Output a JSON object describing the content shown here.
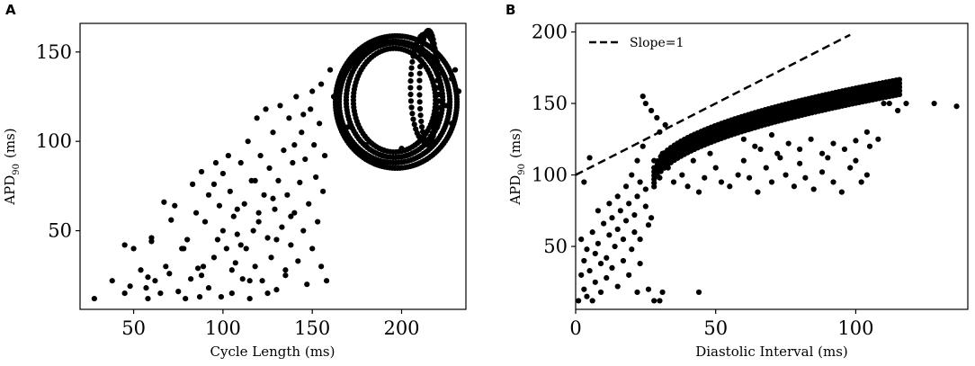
{
  "chart_data": [
    {
      "panel": "A",
      "type": "scatter",
      "xlabel": "Cycle Length (ms)",
      "ylabel_main": "APD",
      "ylabel_sub": "90",
      "ylabel_unit": "(ms)",
      "xlim": [
        20,
        236
      ],
      "ylim": [
        6,
        166
      ],
      "xticks": [
        50,
        100,
        150,
        200
      ],
      "yticks": [
        50,
        100,
        150
      ],
      "grid": false,
      "marker_color": "#000000",
      "points": [
        [
          28,
          12
        ],
        [
          38,
          22
        ],
        [
          45,
          42
        ],
        [
          45,
          15
        ],
        [
          48,
          19
        ],
        [
          50,
          40
        ],
        [
          54,
          28
        ],
        [
          57,
          18
        ],
        [
          58,
          12
        ],
        [
          60,
          46
        ],
        [
          60,
          44
        ],
        [
          62,
          22
        ],
        [
          65,
          15
        ],
        [
          67,
          66
        ],
        [
          70,
          26
        ],
        [
          71,
          56
        ],
        [
          73,
          64
        ],
        [
          75,
          16
        ],
        [
          77,
          40
        ],
        [
          79,
          12
        ],
        [
          80,
          45
        ],
        [
          82,
          23
        ],
        [
          83,
          76
        ],
        [
          85,
          60
        ],
        [
          86,
          29
        ],
        [
          87,
          13
        ],
        [
          88,
          83
        ],
        [
          89,
          30
        ],
        [
          90,
          55
        ],
        [
          92,
          18
        ],
        [
          92,
          70
        ],
        [
          95,
          76
        ],
        [
          96,
          88
        ],
        [
          97,
          45
        ],
        [
          98,
          64
        ],
        [
          99,
          13
        ],
        [
          100,
          82
        ],
        [
          102,
          40
        ],
        [
          103,
          92
        ],
        [
          104,
          72
        ],
        [
          105,
          15
        ],
        [
          106,
          58
        ],
        [
          107,
          32
        ],
        [
          108,
          48
        ],
        [
          110,
          88
        ],
        [
          111,
          23
        ],
        [
          112,
          65
        ],
        [
          113,
          40
        ],
        [
          114,
          100
        ],
        [
          115,
          12
        ],
        [
          116,
          78
        ],
        [
          117,
          50
        ],
        [
          118,
          30
        ],
        [
          119,
          113
        ],
        [
          120,
          60
        ],
        [
          121,
          92
        ],
        [
          122,
          22
        ],
        [
          123,
          70
        ],
        [
          124,
          118
        ],
        [
          125,
          46
        ],
        [
          126,
          85
        ],
        [
          127,
          35
        ],
        [
          128,
          105
        ],
        [
          129,
          62
        ],
        [
          130,
          17
        ],
        [
          131,
          78
        ],
        [
          132,
          120
        ],
        [
          133,
          52
        ],
        [
          134,
          95
        ],
        [
          135,
          28
        ],
        [
          136,
          70
        ],
        [
          137,
          113
        ],
        [
          138,
          42
        ],
        [
          139,
          88
        ],
        [
          140,
          60
        ],
        [
          141,
          125
        ],
        [
          142,
          33
        ],
        [
          143,
          77
        ],
        [
          144,
          105
        ],
        [
          145,
          50
        ],
        [
          146,
          90
        ],
        [
          147,
          20
        ],
        [
          148,
          65
        ],
        [
          149,
          118
        ],
        [
          150,
          40
        ],
        [
          151,
          98
        ],
        [
          152,
          80
        ],
        [
          153,
          55
        ],
        [
          154,
          110
        ],
        [
          155,
          30
        ],
        [
          156,
          72
        ],
        [
          157,
          92
        ],
        [
          158,
          22
        ],
        [
          110,
          42
        ],
        [
          120,
          55
        ],
        [
          130,
          45
        ],
        [
          140,
          98
        ],
        [
          145,
          115
        ],
        [
          150,
          128
        ],
        [
          155,
          132
        ],
        [
          160,
          140
        ],
        [
          162,
          125
        ],
        [
          165,
          118
        ],
        [
          95,
          35
        ],
        [
          105,
          28
        ],
        [
          115,
          22
        ],
        [
          125,
          15
        ],
        [
          135,
          25
        ],
        [
          100,
          50
        ],
        [
          108,
          62
        ],
        [
          118,
          78
        ],
        [
          128,
          68
        ],
        [
          138,
          58
        ],
        [
          88,
          25
        ],
        [
          78,
          40
        ],
        [
          68,
          30
        ],
        [
          58,
          24
        ],
        [
          170,
          108
        ],
        [
          172,
          100
        ],
        [
          175,
          96
        ],
        [
          180,
          98
        ],
        [
          190,
          95
        ],
        [
          200,
          96
        ],
        [
          210,
          100
        ],
        [
          220,
          108
        ],
        [
          225,
          120
        ],
        [
          228,
          135
        ],
        [
          230,
          140
        ],
        [
          232,
          128
        ],
        [
          228,
          110
        ]
      ],
      "rings": [
        {
          "cx": 196,
          "cy": 123,
          "rx": 23,
          "ry": 29,
          "n": 90
        },
        {
          "cx": 196,
          "cy": 123,
          "rx": 27,
          "ry": 32,
          "n": 110
        },
        {
          "cx": 196,
          "cy": 122,
          "rx": 31,
          "ry": 34,
          "n": 130
        },
        {
          "cx": 197,
          "cy": 122,
          "rx": 34,
          "ry": 37,
          "n": 150
        },
        {
          "cx": 213,
          "cy": 130,
          "rx": 8,
          "ry": 30,
          "n": 50
        },
        {
          "cx": 215,
          "cy": 130,
          "rx": 5,
          "ry": 32,
          "n": 50
        }
      ]
    },
    {
      "panel": "B",
      "type": "scatter",
      "xlabel": "Diastolic Interval (ms)",
      "ylabel_main": "APD",
      "ylabel_sub": "90",
      "ylabel_unit": "(ms)",
      "xlim": [
        0,
        140
      ],
      "ylim": [
        6,
        206
      ],
      "xticks": [
        0,
        50,
        100
      ],
      "yticks": [
        50,
        100,
        150,
        200
      ],
      "grid": false,
      "legend": {
        "label": "Slope=1",
        "position": "top-left"
      },
      "reference_line": {
        "x": [
          0,
          98
        ],
        "y": [
          100,
          198
        ],
        "style": "dashed"
      },
      "marker_color": "#000000",
      "points": [
        [
          1,
          12
        ],
        [
          2,
          30
        ],
        [
          2,
          55
        ],
        [
          3,
          20
        ],
        [
          3,
          40
        ],
        [
          4,
          15
        ],
        [
          4,
          48
        ],
        [
          5,
          33
        ],
        [
          6,
          60
        ],
        [
          6,
          12
        ],
        [
          7,
          45
        ],
        [
          7,
          25
        ],
        [
          8,
          52
        ],
        [
          9,
          38
        ],
        [
          9,
          18
        ],
        [
          10,
          66
        ],
        [
          11,
          42
        ],
        [
          11,
          28
        ],
        [
          12,
          58
        ],
        [
          13,
          35
        ],
        [
          13,
          70
        ],
        [
          14,
          50
        ],
        [
          15,
          22
        ],
        [
          15,
          62
        ],
        [
          16,
          75
        ],
        [
          17,
          40
        ],
        [
          17,
          55
        ],
        [
          18,
          68
        ],
        [
          19,
          30
        ],
        [
          19,
          80
        ],
        [
          20,
          48
        ],
        [
          21,
          60
        ],
        [
          21,
          72
        ],
        [
          22,
          85
        ],
        [
          22,
          18
        ],
        [
          23,
          38
        ],
        [
          23,
          55
        ],
        [
          24,
          155
        ],
        [
          25,
          90
        ],
        [
          25,
          150
        ],
        [
          26,
          65
        ],
        [
          26,
          20
        ],
        [
          27,
          145
        ],
        [
          28,
          12
        ],
        [
          28,
          105
        ],
        [
          29,
          140
        ],
        [
          30,
          12
        ],
        [
          30,
          130
        ],
        [
          31,
          18
        ],
        [
          32,
          135
        ],
        [
          44,
          18
        ],
        [
          24,
          120
        ],
        [
          22,
          110
        ],
        [
          20,
          100
        ],
        [
          23,
          95
        ],
        [
          5,
          112
        ],
        [
          3,
          95
        ],
        [
          12,
          80
        ],
        [
          8,
          75
        ],
        [
          15,
          85
        ],
        [
          18,
          92
        ],
        [
          28,
          110
        ],
        [
          30,
          98
        ],
        [
          25,
          78
        ],
        [
          27,
          70
        ],
        [
          31,
          115
        ],
        [
          33,
          105
        ],
        [
          35,
          95
        ],
        [
          38,
          100
        ],
        [
          40,
          92
        ],
        [
          42,
          110
        ],
        [
          44,
          88
        ],
        [
          46,
          98
        ],
        [
          48,
          115
        ],
        [
          50,
          105
        ],
        [
          52,
          95
        ],
        [
          55,
          92
        ],
        [
          58,
          100
        ],
        [
          60,
          110
        ],
        [
          62,
          98
        ],
        [
          65,
          88
        ],
        [
          68,
          105
        ],
        [
          70,
          95
        ],
        [
          72,
          115
        ],
        [
          75,
          100
        ],
        [
          78,
          92
        ],
        [
          80,
          108
        ],
        [
          82,
          98
        ],
        [
          85,
          90
        ],
        [
          88,
          102
        ],
        [
          90,
          112
        ],
        [
          92,
          95
        ],
        [
          95,
          88
        ],
        [
          98,
          105
        ],
        [
          100,
          110
        ],
        [
          102,
          95
        ],
        [
          104,
          100
        ],
        [
          105,
          120
        ],
        [
          108,
          125
        ],
        [
          110,
          150
        ],
        [
          112,
          150
        ],
        [
          115,
          145
        ],
        [
          118,
          150
        ],
        [
          128,
          150
        ],
        [
          136,
          148
        ],
        [
          58,
          130
        ],
        [
          60,
          125
        ],
        [
          62,
          132
        ],
        [
          64,
          120
        ],
        [
          66,
          118
        ],
        [
          70,
          128
        ],
        [
          73,
          112
        ],
        [
          76,
          122
        ],
        [
          80,
          118
        ],
        [
          84,
          125
        ],
        [
          88,
          115
        ],
        [
          92,
          122
        ],
        [
          96,
          118
        ],
        [
          100,
          124
        ],
        [
          104,
          130
        ]
      ],
      "bands": [
        {
          "x_from": 28,
          "x_to": 116,
          "y_from": 95,
          "y_to": 163,
          "step": 1.2
        }
      ]
    }
  ],
  "panels": {
    "a_letter": "A",
    "b_letter": "B"
  }
}
